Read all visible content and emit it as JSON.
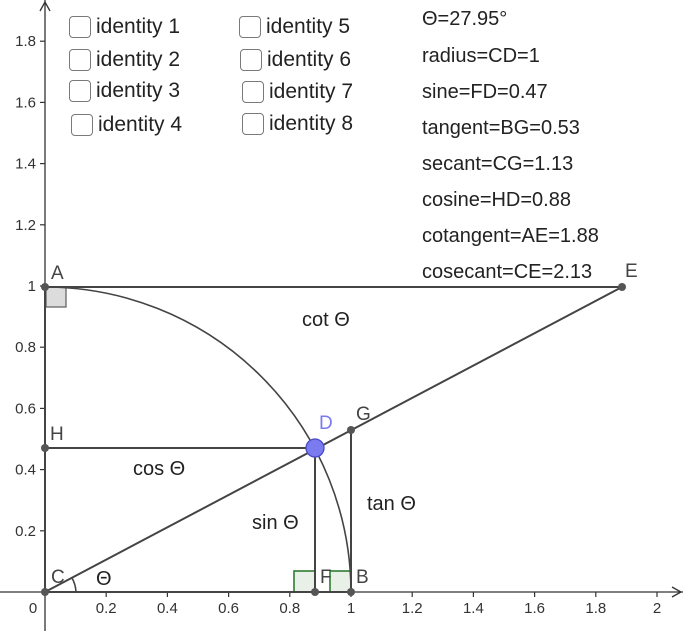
{
  "axes": {
    "x_ticks": [
      "0",
      "0.2",
      "0.4",
      "0.6",
      "0.8",
      "1",
      "1.2",
      "1.4",
      "1.6",
      "1.8",
      "2"
    ],
    "y_ticks": [
      "0.2",
      "0.4",
      "0.6",
      "0.8",
      "1",
      "1.2",
      "1.4",
      "1.6",
      "1.8"
    ]
  },
  "points": {
    "A": "A",
    "B": "B",
    "C": "C",
    "D": "D",
    "E": "E",
    "F": "F",
    "G": "G",
    "H": "H"
  },
  "segment_labels": {
    "cot": "cot Θ",
    "cos": "cos Θ",
    "sin": "sin Θ",
    "tan": "tan Θ",
    "theta": "Θ"
  },
  "checkboxes": [
    {
      "label": "identity 1",
      "checked": false
    },
    {
      "label": "identity 2",
      "checked": false
    },
    {
      "label": "identity 3",
      "checked": false
    },
    {
      "label": "identity 4",
      "checked": false
    },
    {
      "label": "identity 5",
      "checked": false
    },
    {
      "label": "identity 6",
      "checked": false
    },
    {
      "label": "identity 7",
      "checked": false
    },
    {
      "label": "identity 8",
      "checked": false
    }
  ],
  "readouts": {
    "theta": "Θ=27.95°",
    "radius": "radius=CD=1",
    "sine": "sine=FD=0.47",
    "tangent": "tangent=BG=0.53",
    "secant": "secant=CG=1.13",
    "cosine": "cosine=HD=0.88",
    "cotangent": "cotangent=AE=1.88",
    "cosecant": "cosecant=CE=2.13"
  },
  "colors": {
    "axis": "#333333",
    "line": "#444444",
    "point_fill": "#555555",
    "point_D": "#7b7bf0",
    "label_D": "#7b7bf0",
    "right_angle_gray": "#666666",
    "right_angle_green": "#2e7d32"
  }
}
